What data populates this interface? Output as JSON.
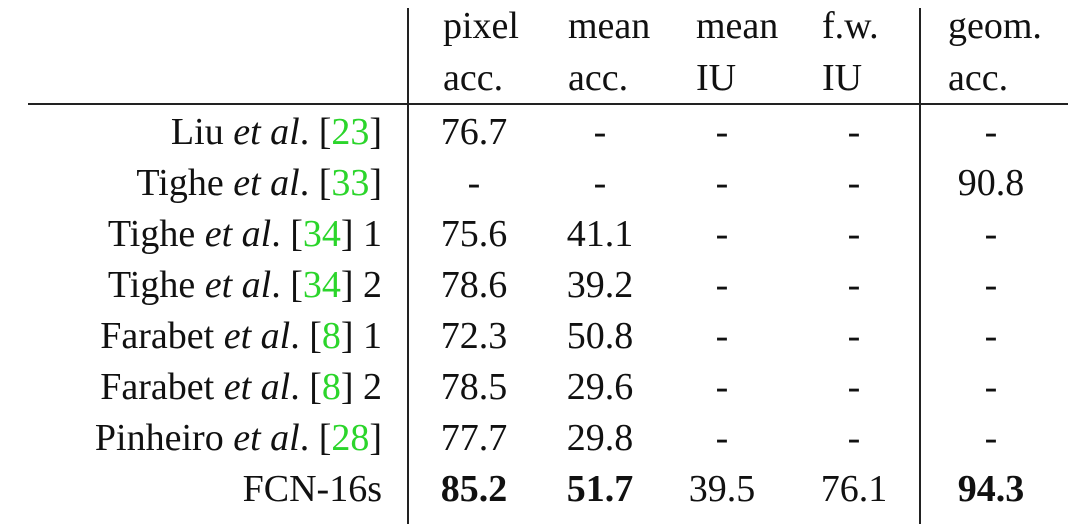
{
  "header": {
    "columns": [
      {
        "line1": "pixel",
        "line2": "acc."
      },
      {
        "line1": "mean",
        "line2": "acc."
      },
      {
        "line1": "mean",
        "line2": "IU"
      },
      {
        "line1": "f.w.",
        "line2": "IU"
      },
      {
        "line1": "geom.",
        "line2": "acc."
      }
    ]
  },
  "rows": [
    {
      "name": "Liu",
      "etal": "et al",
      "dot": ".",
      "cite_open": "[",
      "cite": "23",
      "cite_close": "]",
      "suffix": "",
      "values": [
        "76.7",
        "-",
        "-",
        "-",
        "-"
      ],
      "bold": [
        false,
        false,
        false,
        false,
        false
      ]
    },
    {
      "name": "Tighe",
      "etal": "et al",
      "dot": ".",
      "cite_open": "[",
      "cite": "33",
      "cite_close": "]",
      "suffix": "",
      "values": [
        "-",
        "-",
        "-",
        "-",
        "90.8"
      ],
      "bold": [
        false,
        false,
        false,
        false,
        false
      ]
    },
    {
      "name": "Tighe",
      "etal": "et al",
      "dot": ".",
      "cite_open": "[",
      "cite": "34",
      "cite_close": "]",
      "suffix": " 1",
      "values": [
        "75.6",
        "41.1",
        "-",
        "-",
        "-"
      ],
      "bold": [
        false,
        false,
        false,
        false,
        false
      ]
    },
    {
      "name": "Tighe",
      "etal": "et al",
      "dot": ".",
      "cite_open": "[",
      "cite": "34",
      "cite_close": "]",
      "suffix": " 2",
      "values": [
        "78.6",
        "39.2",
        "-",
        "-",
        "-"
      ],
      "bold": [
        false,
        false,
        false,
        false,
        false
      ]
    },
    {
      "name": "Farabet",
      "etal": "et al",
      "dot": ".",
      "cite_open": "[",
      "cite": "8",
      "cite_close": "]",
      "suffix": " 1",
      "values": [
        "72.3",
        "50.8",
        "-",
        "-",
        "-"
      ],
      "bold": [
        false,
        false,
        false,
        false,
        false
      ]
    },
    {
      "name": "Farabet",
      "etal": "et al",
      "dot": ".",
      "cite_open": "[",
      "cite": "8",
      "cite_close": "]",
      "suffix": " 2",
      "values": [
        "78.5",
        "29.6",
        "-",
        "-",
        "-"
      ],
      "bold": [
        false,
        false,
        false,
        false,
        false
      ]
    },
    {
      "name": "Pinheiro",
      "etal": "et al",
      "dot": ".",
      "cite_open": "[",
      "cite": "28",
      "cite_close": "]",
      "suffix": "",
      "values": [
        "77.7",
        "29.8",
        "-",
        "-",
        "-"
      ],
      "bold": [
        false,
        false,
        false,
        false,
        false
      ]
    },
    {
      "name": "FCN-16s",
      "etal": "",
      "dot": "",
      "cite_open": "",
      "cite": "",
      "cite_close": "",
      "suffix": "",
      "values": [
        "85.2",
        "51.7",
        "39.5",
        "76.1",
        "94.3"
      ],
      "bold": [
        true,
        true,
        false,
        false,
        true
      ]
    }
  ],
  "colors": {
    "citation": "#2bd52b",
    "text": "#111111",
    "rule": "#222222"
  }
}
